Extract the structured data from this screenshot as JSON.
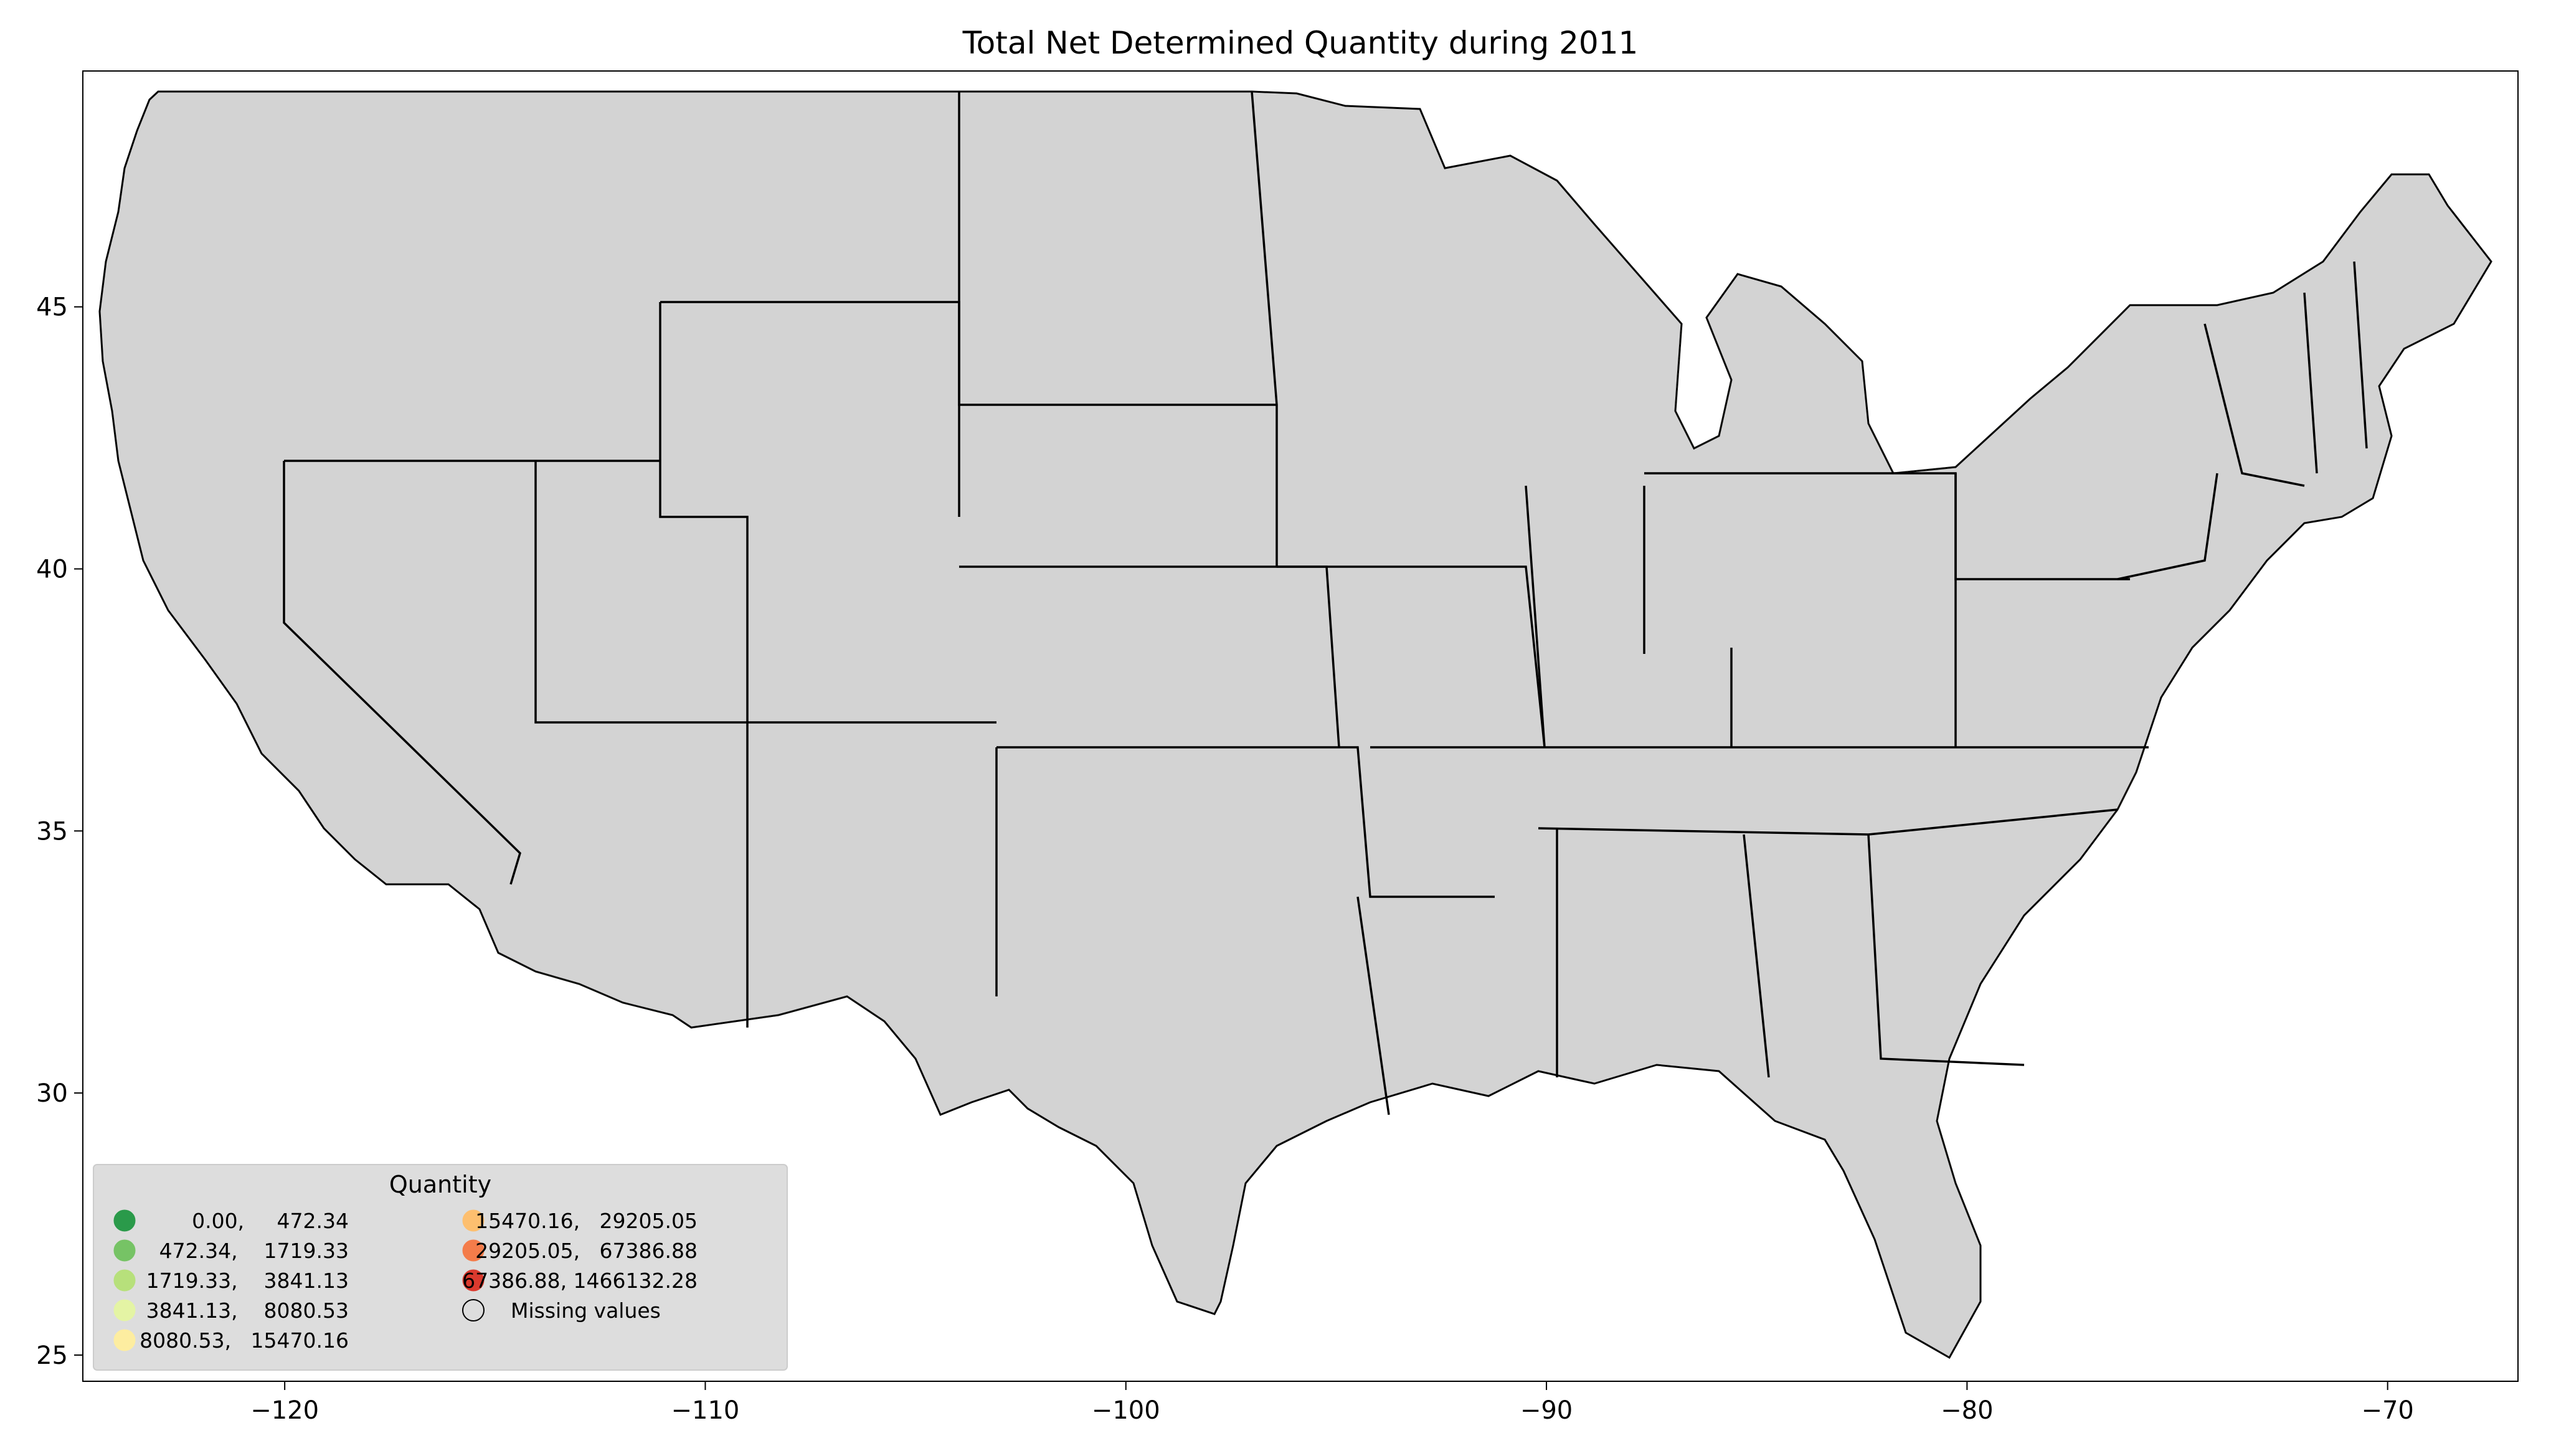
{
  "title": "Total Net Determined Quantity during 2011",
  "axes": {
    "x_ticks": [
      "−120",
      "−110",
      "−100",
      "−90",
      "−80",
      "−70"
    ],
    "y_ticks": [
      "25",
      "30",
      "35",
      "40",
      "45"
    ]
  },
  "legend": {
    "title": "Quantity",
    "placement": "lower-left",
    "items": [
      {
        "label": "0.00,     472.34",
        "color": "#2a9a4a"
      },
      {
        "label": "472.34,    1719.33",
        "color": "#76c365"
      },
      {
        "label": "1719.33,    3841.13",
        "color": "#b7e07b"
      },
      {
        "label": "3841.13,    8080.53",
        "color": "#e4f4a4"
      },
      {
        "label": "8080.53,   15470.16",
        "color": "#fdeda0"
      },
      {
        "label": "15470.16,   29205.05",
        "color": "#fdbf6f"
      },
      {
        "label": "29205.05,   67386.88",
        "color": "#f47c4a"
      },
      {
        "label": "67386.88, 1466132.28",
        "color": "#db3a2e"
      },
      {
        "label": "Missing values",
        "color": "#d3d3d3"
      }
    ]
  },
  "map": {
    "missing_color": "#d3d3d3",
    "x_range": [
      -124.8,
      -66.9
    ],
    "y_range": [
      24.5,
      49.5
    ]
  }
}
